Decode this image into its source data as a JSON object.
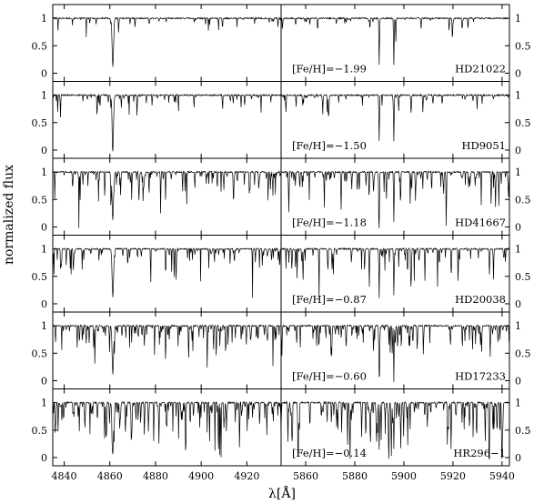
{
  "chart_data": {
    "type": "line",
    "description_free": true,
    "xlabel": "λ[Å]",
    "ylabel": "normalized flux",
    "ylim": [
      -0.15,
      1.25
    ],
    "yticks": [
      "0",
      "0.5",
      "1"
    ],
    "left_xlim": [
      4835,
      4935
    ],
    "right_xlim": [
      5850,
      5943
    ],
    "left_xticks": [
      "4840",
      "4860",
      "4880",
      "4900",
      "4920"
    ],
    "right_xticks": [
      "5860",
      "5880",
      "5900",
      "5920",
      "5940"
    ],
    "left_xtick_values": [
      4840,
      4860,
      4880,
      4900,
      4920
    ],
    "right_xtick_values": [
      5860,
      5880,
      5900,
      5920,
      5940
    ],
    "stars": [
      {
        "name": "HD21022",
        "feh": "[Fe/H]=−1.99",
        "density": 0.12
      },
      {
        "name": "HD9051",
        "feh": "[Fe/H]=−1.50",
        "density": 0.22
      },
      {
        "name": "HD41667",
        "feh": "[Fe/H]=−1.18",
        "density": 0.55
      },
      {
        "name": "HD20038",
        "feh": "[Fe/H]=−0.87",
        "density": 0.45
      },
      {
        "name": "HD17233",
        "feh": "[Fe/H]=−0.60",
        "density": 0.6
      },
      {
        "name": "HR296−1",
        "feh": "[Fe/H]=−0.14",
        "density": 0.85
      }
    ],
    "strong_lines": {
      "left": [
        4861.3
      ],
      "right": [
        5889.95,
        5895.92
      ]
    }
  }
}
